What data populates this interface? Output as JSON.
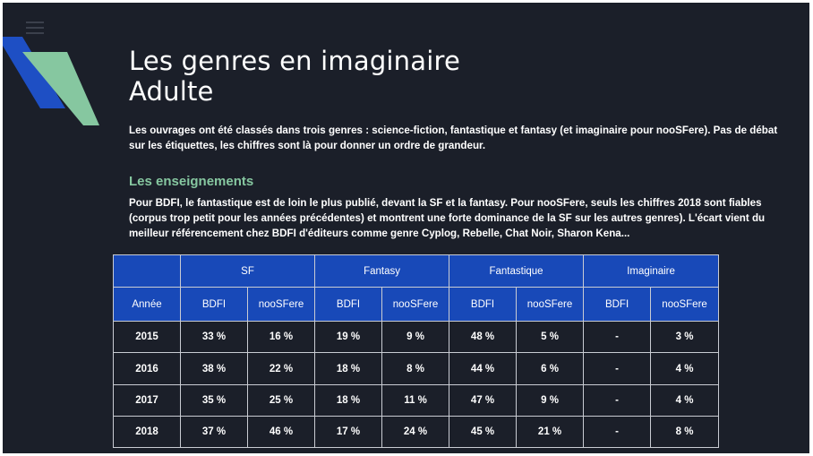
{
  "slide": {
    "title_line1": "Les genres en imaginaire",
    "title_line2": "Adulte",
    "intro": "Les ouvrages ont été classés dans trois genres  : science-fiction, fantastique et fantasy (et imaginaire pour nooSFere). Pas de débat sur les  étiquettes, les chiffres sont là pour donner un ordre de grandeur.",
    "section_heading": "Les enseignements",
    "lessons": "Pour BDFI, le fantastique est de loin le plus publié, devant la SF et la fantasy. Pour nooSFere, seuls les chiffres 2018 sont fiables (corpus trop petit pour les années précédentes) et montrent une forte dominance de la SF sur les autres genres). L'écart vient du meilleur référencement chez BDFI d'éditeurs comme genre Cyplog, Rebelle, Chat Noir, Sharon Kena..."
  },
  "table": {
    "genres": [
      "SF",
      "Fantasy",
      "Fantastique",
      "Imaginaire"
    ],
    "year_label": "Année",
    "sources": [
      "BDFI",
      "nooSFere",
      "BDFI",
      "nooSFere",
      "BDFI",
      "nooSFere",
      "BDFI",
      "nooSFere"
    ],
    "rows": [
      {
        "year": "2015",
        "cells": [
          "33 %",
          "16 %",
          "19 %",
          "9 %",
          "48 %",
          "5 %",
          "-",
          "3 %"
        ]
      },
      {
        "year": "2016",
        "cells": [
          "38 %",
          "22 %",
          "18 %",
          "8 %",
          "44 %",
          "6 %",
          "-",
          "4 %"
        ]
      },
      {
        "year": "2017",
        "cells": [
          "35 %",
          "25 %",
          "18 %",
          "11 %",
          "47 %",
          "9 %",
          "-",
          "4 %"
        ]
      },
      {
        "year": "2018",
        "cells": [
          "37 %",
          "46 %",
          "17 %",
          "24 %",
          "45 %",
          "21 %",
          "-",
          "8 %"
        ]
      }
    ]
  },
  "colors": {
    "background": "#1b1f29",
    "header_blue": "#1849b8",
    "accent_green": "#86c7a0",
    "deco_blue": "#1e4fc4"
  }
}
